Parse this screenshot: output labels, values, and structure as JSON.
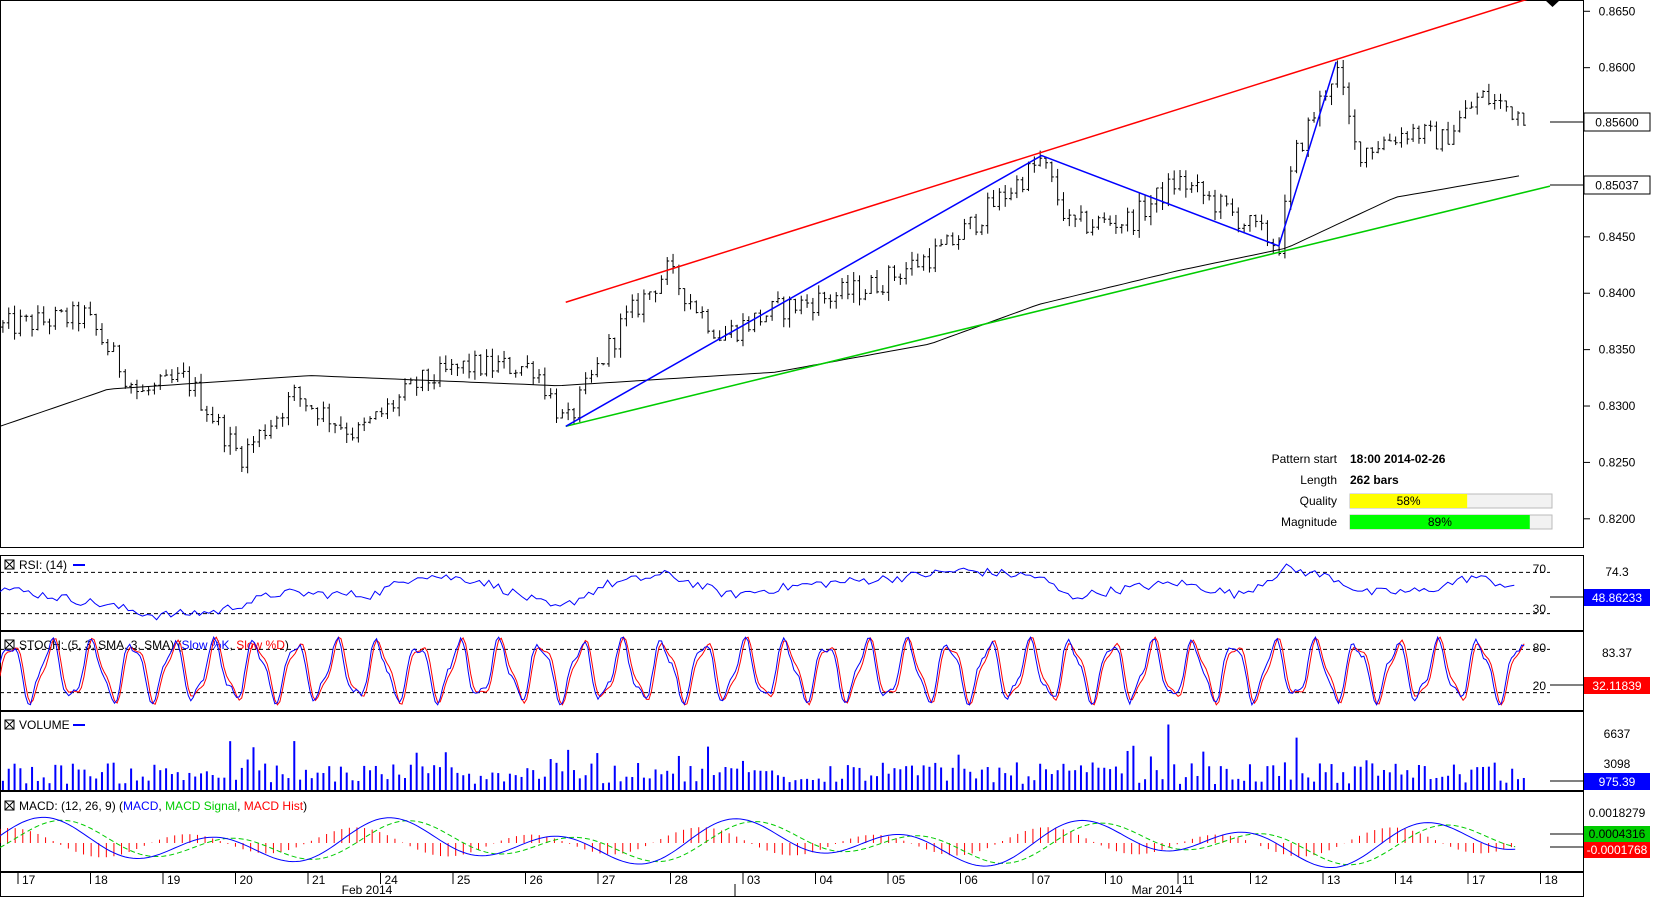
{
  "chart_data": {
    "type": "candlestick",
    "price_axis": {
      "ticks": [
        "0.8650",
        "0.8600",
        "0.8550",
        "0.8500",
        "0.8450",
        "0.8400",
        "0.8350",
        "0.8300",
        "0.8250",
        "0.8200"
      ],
      "ylim": [
        0.8175,
        0.866
      ],
      "current_price": "0.85600",
      "ma_value": "0.85037"
    },
    "price_series": {
      "open_level": 0.837,
      "keypoints": [
        {
          "t": 0,
          "p": 0.837
        },
        {
          "t": 0.055,
          "p": 0.838
        },
        {
          "t": 0.09,
          "p": 0.831
        },
        {
          "t": 0.12,
          "p": 0.8325
        },
        {
          "t": 0.155,
          "p": 0.8255
        },
        {
          "t": 0.19,
          "p": 0.831
        },
        {
          "t": 0.23,
          "p": 0.8275
        },
        {
          "t": 0.27,
          "p": 0.832
        },
        {
          "t": 0.3,
          "p": 0.8335
        },
        {
          "t": 0.345,
          "p": 0.8335
        },
        {
          "t": 0.365,
          "p": 0.8282
        },
        {
          "t": 0.4,
          "p": 0.837
        },
        {
          "t": 0.43,
          "p": 0.842
        },
        {
          "t": 0.465,
          "p": 0.8362
        },
        {
          "t": 0.5,
          "p": 0.8385
        },
        {
          "t": 0.56,
          "p": 0.8405
        },
        {
          "t": 0.61,
          "p": 0.844
        },
        {
          "t": 0.65,
          "p": 0.849
        },
        {
          "t": 0.672,
          "p": 0.8518
        },
        {
          "t": 0.69,
          "p": 0.846
        },
        {
          "t": 0.73,
          "p": 0.8465
        },
        {
          "t": 0.76,
          "p": 0.85
        },
        {
          "t": 0.79,
          "p": 0.8475
        },
        {
          "t": 0.825,
          "p": 0.8442
        },
        {
          "t": 0.835,
          "p": 0.852
        },
        {
          "t": 0.855,
          "p": 0.858
        },
        {
          "t": 0.862,
          "p": 0.86
        },
        {
          "t": 0.875,
          "p": 0.8525
        },
        {
          "t": 0.91,
          "p": 0.8545
        },
        {
          "t": 0.93,
          "p": 0.8535
        },
        {
          "t": 0.955,
          "p": 0.8575
        },
        {
          "t": 0.98,
          "p": 0.856
        }
      ]
    },
    "moving_average": [
      {
        "t": 0,
        "p": 0.8282
      },
      {
        "t": 0.07,
        "p": 0.8315
      },
      {
        "t": 0.2,
        "p": 0.8327
      },
      {
        "t": 0.36,
        "p": 0.8318
      },
      {
        "t": 0.5,
        "p": 0.833
      },
      {
        "t": 0.6,
        "p": 0.8355
      },
      {
        "t": 0.67,
        "p": 0.839
      },
      {
        "t": 0.76,
        "p": 0.842
      },
      {
        "t": 0.83,
        "p": 0.844
      },
      {
        "t": 0.9,
        "p": 0.8485
      },
      {
        "t": 0.98,
        "p": 0.8504
      }
    ],
    "trend_lines": [
      {
        "color": "#ff0000",
        "from": {
          "t": 0.365,
          "p": 0.8392
        },
        "to": {
          "t": 1.0,
          "p": 0.8667
        }
      },
      {
        "color": "#00cc00",
        "from": {
          "t": 0.365,
          "p": 0.8282
        },
        "to": {
          "t": 1.0,
          "p": 0.8495
        }
      }
    ],
    "pattern_zigzag": [
      {
        "t": 0.365,
        "p": 0.8282
      },
      {
        "t": 0.672,
        "p": 0.8522
      },
      {
        "t": 0.825,
        "p": 0.8442
      },
      {
        "t": 0.862,
        "p": 0.8605
      }
    ],
    "pattern_info": {
      "rows": [
        {
          "label": "Pattern start",
          "value": "18:00 2014-02-26"
        },
        {
          "label": "Length",
          "value": "262 bars"
        },
        {
          "label": "Quality",
          "value": "58%",
          "fraction": 0.58,
          "color": "#ffff00"
        },
        {
          "label": "Magnitude",
          "value": "89%",
          "fraction": 0.89,
          "color": "#00ff00"
        }
      ]
    },
    "rsi": {
      "title": "RSI: (14)",
      "levels": [
        "70",
        "30"
      ],
      "level_values": [
        70,
        30
      ],
      "scale_label": "74.3",
      "value": "48.86233",
      "keypoints": [
        [
          0,
          55
        ],
        [
          0.07,
          38
        ],
        [
          0.1,
          28
        ],
        [
          0.14,
          32
        ],
        [
          0.18,
          50
        ],
        [
          0.24,
          48
        ],
        [
          0.27,
          68
        ],
        [
          0.31,
          62
        ],
        [
          0.36,
          34
        ],
        [
          0.39,
          58
        ],
        [
          0.43,
          68
        ],
        [
          0.47,
          48
        ],
        [
          0.52,
          58
        ],
        [
          0.58,
          65
        ],
        [
          0.62,
          72
        ],
        [
          0.67,
          66
        ],
        [
          0.69,
          46
        ],
        [
          0.73,
          55
        ],
        [
          0.76,
          60
        ],
        [
          0.8,
          48
        ],
        [
          0.83,
          74
        ],
        [
          0.86,
          65
        ],
        [
          0.88,
          50
        ],
        [
          0.92,
          52
        ],
        [
          0.95,
          66
        ],
        [
          0.98,
          55
        ]
      ]
    },
    "stoch": {
      "title": "STOCH: (5, 3, SMA, 3, SMA)",
      "legend": [
        {
          "name": "Slow %K",
          "color": "#0000ff"
        },
        {
          "name": "Slow %D",
          "color": "#ff0000"
        }
      ],
      "levels": [
        "80",
        "20"
      ],
      "level_values": [
        80,
        20
      ],
      "scale_label": "83.37",
      "value": "32.11839"
    },
    "volume": {
      "title": "VOLUME",
      "scale_labels": [
        "6637",
        "3098"
      ],
      "scale_values": [
        6637,
        3098
      ],
      "value": "975.39",
      "max": 7600
    },
    "macd": {
      "title": "MACD: (12, 26, 9)",
      "legend": [
        {
          "name": "MACD",
          "color": "#0000ff"
        },
        {
          "name": "MACD Signal",
          "color": "#00cc00"
        },
        {
          "name": "MACD Hist",
          "color": "#ff0000"
        }
      ],
      "scale_labels": [
        "0.0018279",
        "0.0004316",
        "-0.0001768"
      ],
      "value_signal": "0.0004316",
      "value_macd": "-0.0001768"
    },
    "time_axis": {
      "days": [
        "17",
        "18",
        "19",
        "20",
        "21",
        "24",
        "25",
        "26",
        "27",
        "28",
        "03",
        "04",
        "05",
        "06",
        "07",
        "10",
        "11",
        "12",
        "13",
        "14",
        "17",
        "18"
      ],
      "months": [
        "Feb 2014",
        "Mar 2014"
      ]
    }
  }
}
